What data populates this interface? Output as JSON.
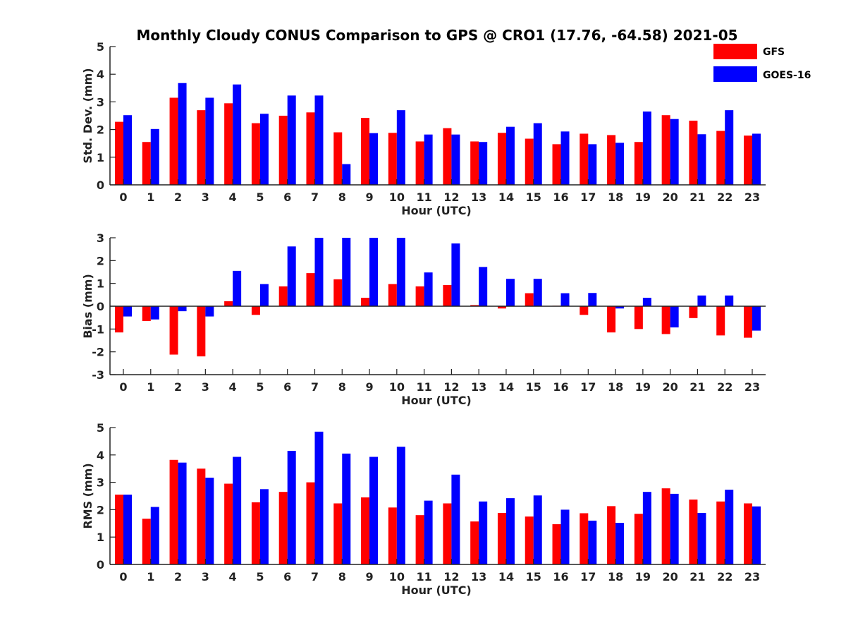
{
  "figure": {
    "title": "Monthly Cloudy CONUS Comparison to GPS @ CRO1 (17.76, -64.58) 2021-05"
  },
  "legend": {
    "position": "top-right",
    "items": [
      {
        "label": "GFS",
        "color": "#ff0000"
      },
      {
        "label": "GOES-16",
        "color": "#0000ff"
      }
    ]
  },
  "chart_data": [
    {
      "type": "bar",
      "xlabel": "Hour (UTC)",
      "ylabel": "Std. Dev. (mm)",
      "ylim": [
        0,
        5
      ],
      "yticks": [
        0,
        1,
        2,
        3,
        4,
        5
      ],
      "categories": [
        "0",
        "1",
        "2",
        "3",
        "4",
        "5",
        "6",
        "7",
        "8",
        "9",
        "10",
        "11",
        "12",
        "13",
        "14",
        "15",
        "16",
        "17",
        "18",
        "19",
        "20",
        "21",
        "22",
        "23"
      ],
      "series": [
        {
          "name": "GFS",
          "color": "#ff0000",
          "values": [
            2.28,
            1.55,
            3.15,
            2.7,
            2.95,
            2.23,
            2.5,
            2.62,
            1.9,
            2.42,
            1.88,
            1.57,
            2.05,
            1.57,
            1.88,
            1.67,
            1.47,
            1.85,
            1.8,
            1.55,
            2.52,
            2.32,
            1.95,
            1.78
          ]
        },
        {
          "name": "GOES-16",
          "color": "#0000ff",
          "values": [
            2.52,
            2.02,
            3.68,
            3.15,
            3.63,
            2.57,
            3.23,
            3.23,
            0.75,
            1.87,
            2.7,
            1.82,
            1.82,
            1.55,
            2.1,
            2.23,
            1.93,
            1.47,
            1.52,
            2.65,
            2.38,
            1.83,
            2.7,
            1.85
          ]
        }
      ]
    },
    {
      "type": "bar",
      "xlabel": "Hour (UTC)",
      "ylabel": "Bias (mm)",
      "ylim": [
        -3,
        3
      ],
      "yticks": [
        -3,
        -2,
        -1,
        0,
        1,
        2,
        3
      ],
      "categories": [
        "0",
        "1",
        "2",
        "3",
        "4",
        "5",
        "6",
        "7",
        "8",
        "9",
        "10",
        "11",
        "12",
        "13",
        "14",
        "15",
        "16",
        "17",
        "18",
        "19",
        "20",
        "21",
        "22",
        "23"
      ],
      "series": [
        {
          "name": "GFS",
          "color": "#ff0000",
          "values": [
            -1.15,
            -0.65,
            -2.12,
            -2.2,
            0.22,
            -0.38,
            0.87,
            1.45,
            1.18,
            0.37,
            0.97,
            0.87,
            0.93,
            0.05,
            -0.1,
            0.57,
            0.02,
            -0.38,
            -1.15,
            -1.0,
            -1.22,
            -0.52,
            -1.28,
            -1.38
          ]
        },
        {
          "name": "GOES-16",
          "color": "#0000ff",
          "values": [
            -0.45,
            -0.58,
            -0.22,
            -0.45,
            1.55,
            0.97,
            2.62,
            3.0,
            3.0,
            3.0,
            3.0,
            1.48,
            2.75,
            1.72,
            1.2,
            1.2,
            0.57,
            0.58,
            -0.1,
            0.37,
            -0.93,
            0.47,
            0.47,
            -1.07
          ]
        }
      ]
    },
    {
      "type": "bar",
      "xlabel": "Hour (UTC)",
      "ylabel": "RMS (mm)",
      "ylim": [
        0,
        5
      ],
      "yticks": [
        0,
        1,
        2,
        3,
        4,
        5
      ],
      "categories": [
        "0",
        "1",
        "2",
        "3",
        "4",
        "5",
        "6",
        "7",
        "8",
        "9",
        "10",
        "11",
        "12",
        "13",
        "14",
        "15",
        "16",
        "17",
        "18",
        "19",
        "20",
        "21",
        "22",
        "23"
      ],
      "series": [
        {
          "name": "GFS",
          "color": "#ff0000",
          "values": [
            2.55,
            1.67,
            3.82,
            3.5,
            2.95,
            2.27,
            2.65,
            3.0,
            2.23,
            2.45,
            2.08,
            1.8,
            2.23,
            1.57,
            1.88,
            1.75,
            1.47,
            1.87,
            2.13,
            1.85,
            2.78,
            2.37,
            2.3,
            2.23
          ]
        },
        {
          "name": "GOES-16",
          "color": "#0000ff",
          "values": [
            2.55,
            2.1,
            3.72,
            3.17,
            3.93,
            2.75,
            4.15,
            4.85,
            4.05,
            3.93,
            4.3,
            2.33,
            3.28,
            2.3,
            2.42,
            2.52,
            2.0,
            1.6,
            1.52,
            2.65,
            2.58,
            1.88,
            2.73,
            2.12
          ]
        }
      ]
    }
  ]
}
